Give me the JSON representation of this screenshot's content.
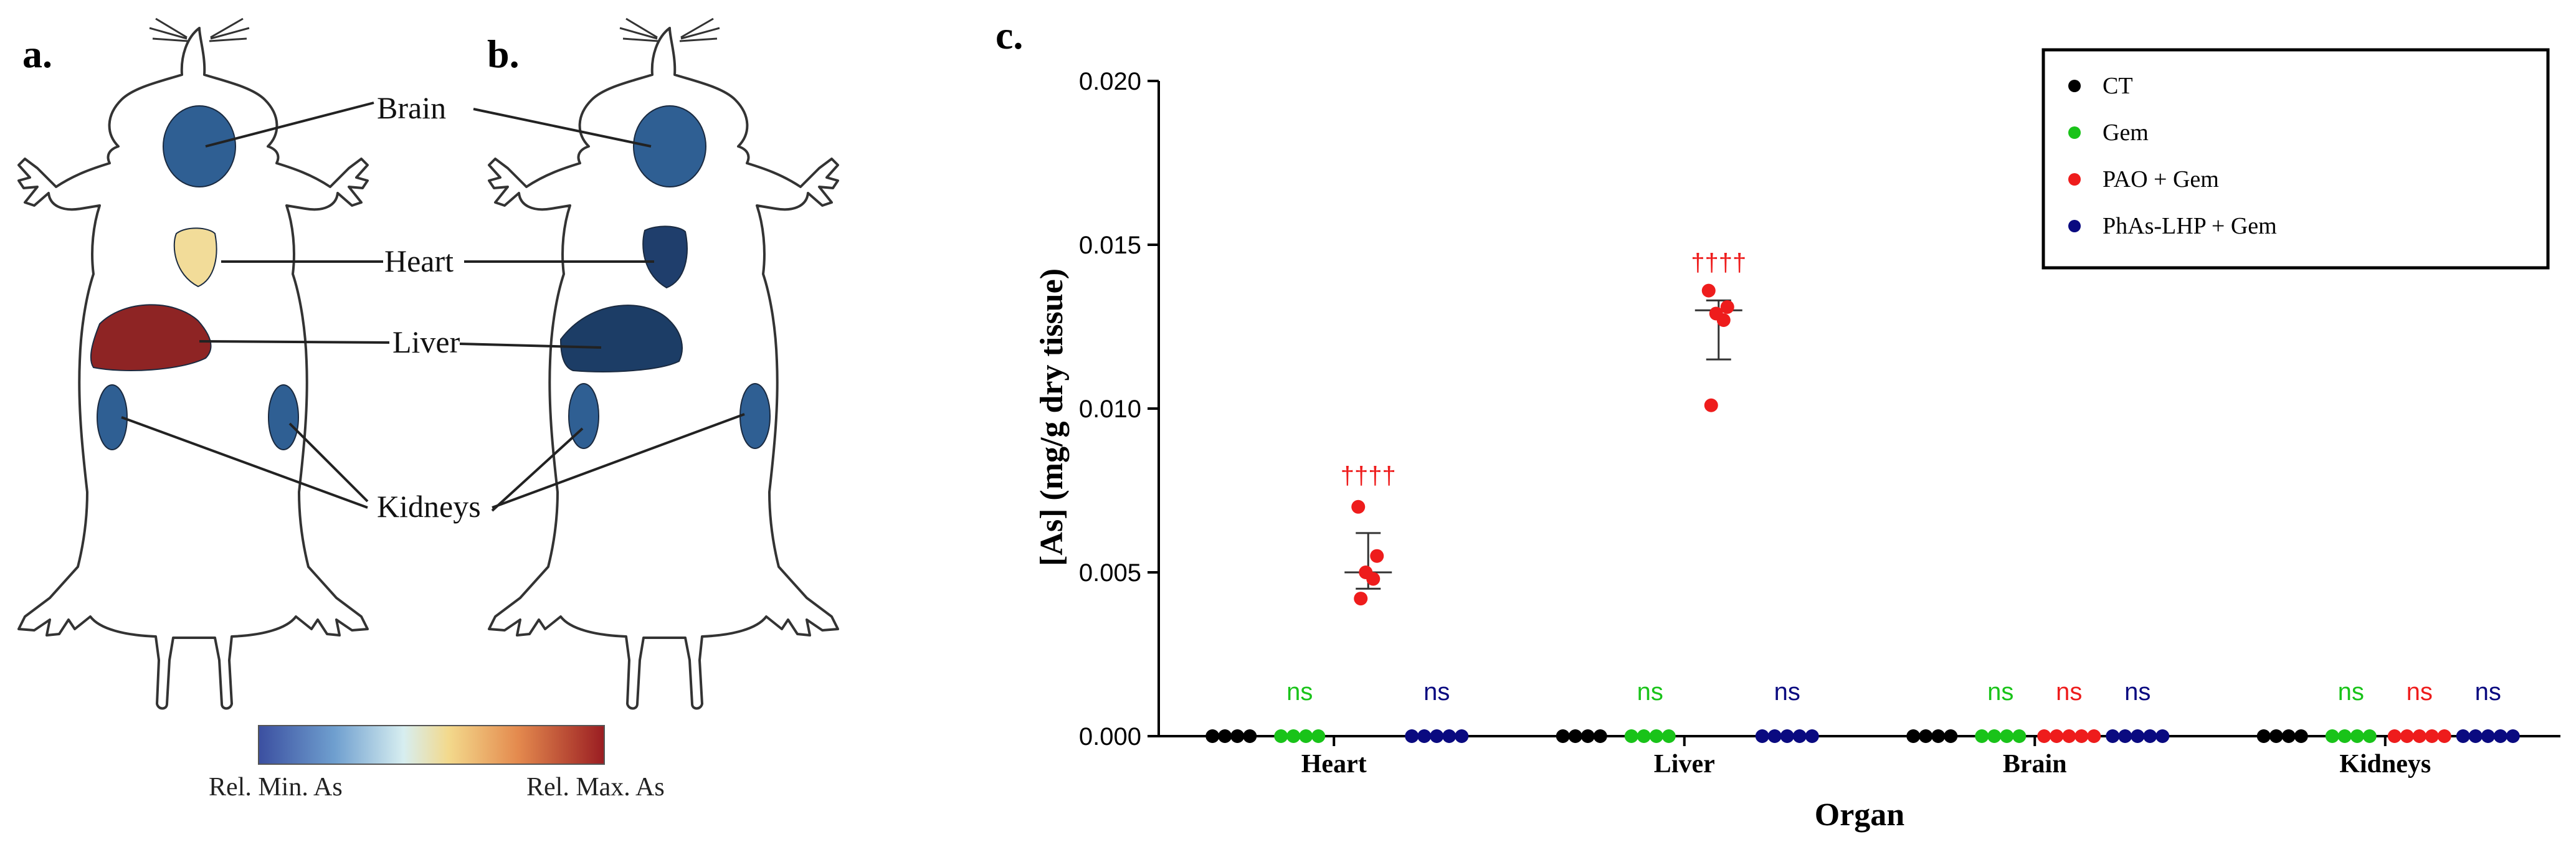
{
  "panels": {
    "a": "a.",
    "b": "b.",
    "c": "c."
  },
  "organ_labels": {
    "brain": "Brain",
    "heart": "Heart",
    "liver": "Liver",
    "kidneys": "Kidneys"
  },
  "colorbar": {
    "min_label": "Rel. Min. As",
    "max_label": "Rel. Max. As",
    "colors": [
      "#3b4fa0",
      "#6f9fcf",
      "#d7eef0",
      "#f3d98c",
      "#e48a4e",
      "#9a1d22"
    ]
  },
  "organ_colors": {
    "mouse_a": {
      "brain": "#2f5f93",
      "heart": "#f2dc99",
      "liver": "#8e2424",
      "kidneys": "#2f5f93"
    },
    "mouse_b": {
      "brain": "#2f5f93",
      "heart": "#1f3e6c",
      "liver": "#1c3d66",
      "kidneys": "#2f5f93"
    }
  },
  "chart_data": {
    "type": "scatter",
    "title": "",
    "xlabel": "Organ",
    "ylabel": "[As] (mg/g dry tissue)",
    "ylim": [
      0,
      0.02
    ],
    "yticks": [
      "0.000",
      "0.005",
      "0.010",
      "0.015",
      "0.020"
    ],
    "categories": [
      "Heart",
      "Liver",
      "Brain",
      "Kidneys"
    ],
    "series": [
      {
        "name": "CT",
        "color": "#000000",
        "points": [
          [
            0,
            0,
            0,
            0
          ],
          [
            0,
            0,
            0,
            0
          ],
          [
            0,
            0,
            0,
            0
          ],
          [
            0,
            0,
            0,
            0
          ]
        ]
      },
      {
        "name": "Gem",
        "color": "#19c319",
        "points": [
          [
            0,
            0,
            0,
            0
          ],
          [
            0,
            0,
            0,
            0
          ],
          [
            0,
            0,
            0,
            0
          ],
          [
            0,
            0,
            0,
            0
          ]
        ]
      },
      {
        "name": "PAO + Gem",
        "color": "#ee1c1c",
        "points": [
          [
            0.0042,
            0.0048,
            0.005,
            0.0055,
            0.007
          ],
          [
            0.0101,
            0.0127,
            0.0129,
            0.0131,
            0.0136
          ],
          [
            0,
            0,
            0,
            0,
            0
          ],
          [
            0,
            0,
            0,
            0,
            0
          ]
        ],
        "mean": [
          0.005,
          0.013,
          0,
          0
        ],
        "err": [
          [
            0.0045,
            0.0062
          ],
          [
            0.0115,
            0.0133
          ],
          null,
          null
        ]
      },
      {
        "name": "PhAs-LHP + Gem",
        "color": "#0a0a80",
        "points": [
          [
            0,
            0,
            0,
            0,
            0
          ],
          [
            0,
            0,
            0,
            0,
            0
          ],
          [
            0,
            0,
            0,
            0,
            0
          ],
          [
            0,
            0,
            0,
            0,
            0
          ]
        ]
      }
    ],
    "annotations": [
      {
        "category": "Heart",
        "series": "Gem",
        "text": "ns"
      },
      {
        "category": "Heart",
        "series": "PhAs-LHP + Gem",
        "text": "ns"
      },
      {
        "category": "Heart",
        "series": "PAO + Gem",
        "text": "††††",
        "y": 0.0077
      },
      {
        "category": "Liver",
        "series": "Gem",
        "text": "ns"
      },
      {
        "category": "Liver",
        "series": "PhAs-LHP + Gem",
        "text": "ns"
      },
      {
        "category": "Liver",
        "series": "PAO + Gem",
        "text": "††††",
        "y": 0.0142
      },
      {
        "category": "Brain",
        "series": "Gem",
        "text": "ns"
      },
      {
        "category": "Brain",
        "series": "PAO + Gem",
        "text": "ns"
      },
      {
        "category": "Brain",
        "series": "PhAs-LHP + Gem",
        "text": "ns"
      },
      {
        "category": "Kidneys",
        "series": "Gem",
        "text": "ns"
      },
      {
        "category": "Kidneys",
        "series": "PAO + Gem",
        "text": "ns"
      },
      {
        "category": "Kidneys",
        "series": "PhAs-LHP + Gem",
        "text": "ns"
      }
    ],
    "legend": [
      "CT",
      "Gem",
      "PAO + Gem",
      "PhAs-LHP + Gem"
    ],
    "legend_position": "top-right"
  }
}
